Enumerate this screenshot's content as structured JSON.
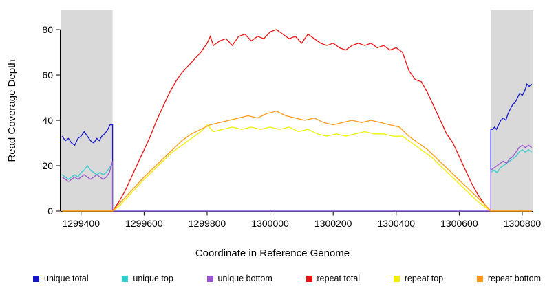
{
  "chart_data": {
    "type": "line",
    "title": "",
    "xlabel": "Coordinate in Reference Genome",
    "ylabel": "Read Coverage Depth",
    "xlim": [
      1299335,
      1300835
    ],
    "ylim": [
      0,
      88.5
    ],
    "x_ticks": [
      1299400,
      1299600,
      1299800,
      1300000,
      1300200,
      1300400,
      1300600,
      1300800
    ],
    "y_ticks": [
      0,
      20,
      40,
      60,
      80
    ],
    "grid": false,
    "legend_position": "bottom",
    "shaded_regions": [
      {
        "x0": 1299335,
        "x1": 1299500,
        "color": "#D9D9D9"
      },
      {
        "x0": 1300700,
        "x1": 1300835,
        "color": "#D9D9D9"
      }
    ],
    "series": [
      {
        "name": "unique total",
        "color": "#1414CC",
        "points": [
          [
            1299340,
            33
          ],
          [
            1299350,
            31
          ],
          [
            1299360,
            32
          ],
          [
            1299370,
            30
          ],
          [
            1299380,
            29
          ],
          [
            1299390,
            32
          ],
          [
            1299400,
            33
          ],
          [
            1299410,
            35
          ],
          [
            1299420,
            33
          ],
          [
            1299430,
            31
          ],
          [
            1299440,
            30
          ],
          [
            1299450,
            32
          ],
          [
            1299458,
            31
          ],
          [
            1299466,
            33
          ],
          [
            1299475,
            34
          ],
          [
            1299485,
            36
          ],
          [
            1299492,
            38
          ],
          [
            1299500,
            38
          ],
          [
            1299500,
            0
          ],
          [
            1300700,
            0
          ],
          [
            1300700,
            36
          ],
          [
            1300706,
            36
          ],
          [
            1300712,
            37
          ],
          [
            1300718,
            36
          ],
          [
            1300725,
            38
          ],
          [
            1300732,
            40
          ],
          [
            1300740,
            41
          ],
          [
            1300748,
            40
          ],
          [
            1300755,
            43
          ],
          [
            1300762,
            45
          ],
          [
            1300770,
            47
          ],
          [
            1300778,
            48
          ],
          [
            1300785,
            50
          ],
          [
            1300792,
            52
          ],
          [
            1300800,
            51
          ],
          [
            1300808,
            53
          ],
          [
            1300815,
            56
          ],
          [
            1300822,
            55
          ],
          [
            1300830,
            56
          ]
        ]
      },
      {
        "name": "unique top",
        "color": "#33CCCC",
        "points": [
          [
            1299340,
            16
          ],
          [
            1299350,
            15
          ],
          [
            1299360,
            14
          ],
          [
            1299370,
            15
          ],
          [
            1299380,
            16
          ],
          [
            1299390,
            15
          ],
          [
            1299400,
            17
          ],
          [
            1299410,
            18
          ],
          [
            1299420,
            20
          ],
          [
            1299430,
            18
          ],
          [
            1299440,
            17
          ],
          [
            1299450,
            16
          ],
          [
            1299460,
            17
          ],
          [
            1299470,
            16
          ],
          [
            1299480,
            17
          ],
          [
            1299490,
            19
          ],
          [
            1299500,
            21
          ],
          [
            1299500,
            0
          ],
          [
            1300700,
            0
          ],
          [
            1300700,
            17
          ],
          [
            1300710,
            18
          ],
          [
            1300720,
            17
          ],
          [
            1300730,
            19
          ],
          [
            1300740,
            20
          ],
          [
            1300750,
            21
          ],
          [
            1300760,
            22
          ],
          [
            1300770,
            23
          ],
          [
            1300780,
            24
          ],
          [
            1300790,
            26
          ],
          [
            1300800,
            27
          ],
          [
            1300810,
            26
          ],
          [
            1300820,
            27
          ],
          [
            1300830,
            26
          ]
        ]
      },
      {
        "name": "unique bottom",
        "color": "#9955CC",
        "points": [
          [
            1299340,
            15
          ],
          [
            1299350,
            14
          ],
          [
            1299360,
            13
          ],
          [
            1299370,
            14
          ],
          [
            1299380,
            15
          ],
          [
            1299390,
            14
          ],
          [
            1299400,
            15
          ],
          [
            1299410,
            16
          ],
          [
            1299420,
            15
          ],
          [
            1299430,
            14
          ],
          [
            1299440,
            15
          ],
          [
            1299450,
            16
          ],
          [
            1299460,
            15
          ],
          [
            1299470,
            14
          ],
          [
            1299480,
            15
          ],
          [
            1299490,
            17
          ],
          [
            1299500,
            22
          ],
          [
            1299500,
            0
          ],
          [
            1300700,
            0
          ],
          [
            1300700,
            18
          ],
          [
            1300710,
            19
          ],
          [
            1300720,
            20
          ],
          [
            1300730,
            21
          ],
          [
            1300740,
            22
          ],
          [
            1300750,
            21
          ],
          [
            1300760,
            23
          ],
          [
            1300770,
            24
          ],
          [
            1300780,
            26
          ],
          [
            1300790,
            28
          ],
          [
            1300800,
            29
          ],
          [
            1300810,
            28
          ],
          [
            1300820,
            29
          ],
          [
            1300830,
            28
          ]
        ]
      },
      {
        "name": "repeat total",
        "color": "#EE1111",
        "points": [
          [
            1299340,
            0
          ],
          [
            1299500,
            0
          ],
          [
            1299520,
            4
          ],
          [
            1299540,
            9
          ],
          [
            1299560,
            15
          ],
          [
            1299580,
            21
          ],
          [
            1299600,
            27
          ],
          [
            1299620,
            33
          ],
          [
            1299640,
            40
          ],
          [
            1299660,
            46
          ],
          [
            1299680,
            52
          ],
          [
            1299700,
            57
          ],
          [
            1299720,
            61
          ],
          [
            1299740,
            64
          ],
          [
            1299760,
            67
          ],
          [
            1299780,
            70
          ],
          [
            1299800,
            74
          ],
          [
            1299810,
            77
          ],
          [
            1299820,
            73
          ],
          [
            1299840,
            75
          ],
          [
            1299860,
            76
          ],
          [
            1299880,
            73
          ],
          [
            1299900,
            77
          ],
          [
            1299920,
            78
          ],
          [
            1299940,
            75
          ],
          [
            1299960,
            77
          ],
          [
            1299980,
            76
          ],
          [
            1300000,
            79
          ],
          [
            1300020,
            80
          ],
          [
            1300040,
            78
          ],
          [
            1300060,
            76
          ],
          [
            1300080,
            77
          ],
          [
            1300100,
            74
          ],
          [
            1300120,
            78
          ],
          [
            1300140,
            76
          ],
          [
            1300160,
            74
          ],
          [
            1300180,
            73
          ],
          [
            1300200,
            74
          ],
          [
            1300220,
            72
          ],
          [
            1300240,
            71
          ],
          [
            1300260,
            73
          ],
          [
            1300280,
            74
          ],
          [
            1300300,
            73
          ],
          [
            1300320,
            74
          ],
          [
            1300340,
            72
          ],
          [
            1300360,
            73
          ],
          [
            1300380,
            71
          ],
          [
            1300400,
            72
          ],
          [
            1300420,
            70
          ],
          [
            1300440,
            62
          ],
          [
            1300460,
            58
          ],
          [
            1300480,
            57
          ],
          [
            1300500,
            52
          ],
          [
            1300520,
            46
          ],
          [
            1300540,
            40
          ],
          [
            1300560,
            34
          ],
          [
            1300580,
            30
          ],
          [
            1300600,
            24
          ],
          [
            1300620,
            18
          ],
          [
            1300640,
            12
          ],
          [
            1300660,
            7
          ],
          [
            1300680,
            3
          ],
          [
            1300700,
            0
          ],
          [
            1300830,
            0
          ]
        ]
      },
      {
        "name": "repeat top",
        "color": "#F0F000",
        "points": [
          [
            1299340,
            0
          ],
          [
            1299500,
            0
          ],
          [
            1299520,
            2
          ],
          [
            1299540,
            5
          ],
          [
            1299560,
            8
          ],
          [
            1299580,
            11
          ],
          [
            1299600,
            14
          ],
          [
            1299630,
            18
          ],
          [
            1299660,
            22
          ],
          [
            1299690,
            26
          ],
          [
            1299720,
            29
          ],
          [
            1299750,
            32
          ],
          [
            1299780,
            35
          ],
          [
            1299800,
            38
          ],
          [
            1299820,
            35
          ],
          [
            1299850,
            36
          ],
          [
            1299880,
            37
          ],
          [
            1299910,
            36
          ],
          [
            1299940,
            37
          ],
          [
            1299970,
            36
          ],
          [
            1300000,
            37
          ],
          [
            1300030,
            36
          ],
          [
            1300060,
            37
          ],
          [
            1300090,
            35
          ],
          [
            1300120,
            36
          ],
          [
            1300150,
            34
          ],
          [
            1300180,
            33
          ],
          [
            1300210,
            34
          ],
          [
            1300240,
            33
          ],
          [
            1300270,
            34
          ],
          [
            1300300,
            35
          ],
          [
            1300330,
            34
          ],
          [
            1300360,
            34
          ],
          [
            1300390,
            33
          ],
          [
            1300420,
            33
          ],
          [
            1300450,
            30
          ],
          [
            1300480,
            27
          ],
          [
            1300510,
            24
          ],
          [
            1300540,
            20
          ],
          [
            1300570,
            16
          ],
          [
            1300600,
            12
          ],
          [
            1300630,
            8
          ],
          [
            1300660,
            4
          ],
          [
            1300690,
            1
          ],
          [
            1300700,
            0
          ],
          [
            1300830,
            0
          ]
        ]
      },
      {
        "name": "repeat bottom",
        "color": "#FF9913",
        "points": [
          [
            1299340,
            0
          ],
          [
            1299500,
            0
          ],
          [
            1299520,
            3
          ],
          [
            1299540,
            6
          ],
          [
            1299560,
            9
          ],
          [
            1299580,
            12
          ],
          [
            1299600,
            15
          ],
          [
            1299630,
            19
          ],
          [
            1299660,
            23
          ],
          [
            1299690,
            27
          ],
          [
            1299720,
            31
          ],
          [
            1299750,
            34
          ],
          [
            1299780,
            36
          ],
          [
            1299810,
            38
          ],
          [
            1299840,
            39
          ],
          [
            1299870,
            40
          ],
          [
            1299900,
            41
          ],
          [
            1299930,
            42
          ],
          [
            1299960,
            41
          ],
          [
            1299990,
            43
          ],
          [
            1300020,
            44
          ],
          [
            1300050,
            42
          ],
          [
            1300080,
            41
          ],
          [
            1300110,
            40
          ],
          [
            1300140,
            41
          ],
          [
            1300170,
            39
          ],
          [
            1300200,
            38
          ],
          [
            1300230,
            39
          ],
          [
            1300260,
            40
          ],
          [
            1300290,
            39
          ],
          [
            1300320,
            40
          ],
          [
            1300350,
            39
          ],
          [
            1300380,
            38
          ],
          [
            1300410,
            37
          ],
          [
            1300440,
            33
          ],
          [
            1300470,
            30
          ],
          [
            1300500,
            27
          ],
          [
            1300530,
            23
          ],
          [
            1300560,
            19
          ],
          [
            1300590,
            15
          ],
          [
            1300620,
            11
          ],
          [
            1300650,
            7
          ],
          [
            1300680,
            3
          ],
          [
            1300700,
            0
          ],
          [
            1300830,
            0
          ]
        ]
      }
    ]
  }
}
